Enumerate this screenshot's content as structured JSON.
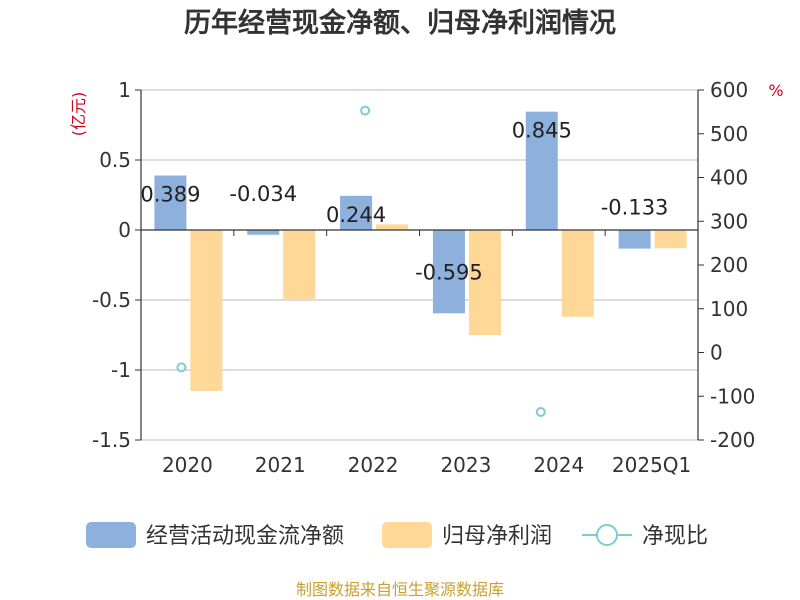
{
  "title": "历年经营现金净额、归母净利润情况",
  "left_unit": "(亿元)",
  "right_unit": "%",
  "source": "制图数据来自恒生聚源数据库",
  "colors": {
    "cash": "#8eb0dc",
    "profit": "#ffd796",
    "ratio": "#7ecbd8",
    "axis": "#333333",
    "grid": "#bbbbbb",
    "unit": "#d0021b",
    "source": "#c8a032"
  },
  "chart_data": {
    "type": "bar",
    "categories": [
      "2020",
      "2021",
      "2022",
      "2023",
      "2024",
      "2025Q1"
    ],
    "series": [
      {
        "name": "经营活动现金流净额",
        "axis": "left",
        "type": "bar",
        "values": [
          0.389,
          -0.034,
          0.244,
          -0.595,
          0.845,
          -0.133
        ],
        "labels": [
          "0.389",
          "-0.034",
          "0.244",
          "-0.595",
          "0.845",
          "-0.133"
        ]
      },
      {
        "name": "归母净利润",
        "axis": "left",
        "type": "bar",
        "values": [
          -1.15,
          -0.5,
          0.04,
          -0.75,
          -0.62,
          -0.13
        ]
      },
      {
        "name": "净现比",
        "axis": "right",
        "type": "scatter",
        "values": [
          -34,
          null,
          553,
          null,
          -136,
          null
        ]
      }
    ],
    "ylim_left": [
      -1.5,
      1
    ],
    "yticks_left": [
      "1",
      "0.5",
      "0",
      "-0.5",
      "-1",
      "-1.5"
    ],
    "ylim_right": [
      -200,
      600
    ],
    "yticks_right": [
      "600",
      "500",
      "400",
      "300",
      "200",
      "100",
      "0",
      "-100",
      "-200"
    ],
    "grid": true,
    "legend_position": "bottom"
  }
}
